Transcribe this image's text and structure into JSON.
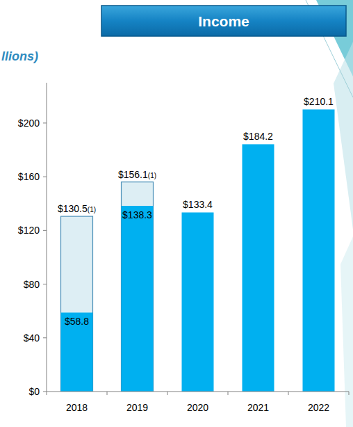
{
  "chart_data": {
    "type": "bar",
    "title": "Income",
    "subtitle": "llions)",
    "categories": [
      "2018",
      "2019",
      "2020",
      "2021",
      "2022"
    ],
    "series": [
      {
        "color": "#ddeef4",
        "values": [
          130.5,
          156.1,
          null,
          null,
          null
        ],
        "value_labels": [
          "$130.5",
          "$156.1",
          null,
          null,
          null
        ],
        "value_notes": [
          "(1)",
          "(1)",
          null,
          null,
          null
        ]
      },
      {
        "color": "#00b0f0",
        "values": [
          58.8,
          138.3,
          133.4,
          184.2,
          210.1
        ],
        "value_labels": [
          "$58.8",
          "$138.3",
          "$133.4",
          "$184.2",
          "$210.1"
        ]
      }
    ],
    "ylim": [
      0,
      230
    ],
    "yticks": [
      {
        "value": 0,
        "label": "$0"
      },
      {
        "value": 40,
        "label": "$40"
      },
      {
        "value": 80,
        "label": "$80"
      },
      {
        "value": 120,
        "label": "$120"
      },
      {
        "value": 160,
        "label": "$160"
      },
      {
        "value": 200,
        "label": "$200"
      }
    ],
    "grid": false,
    "stacked": false,
    "data_labels": true
  }
}
